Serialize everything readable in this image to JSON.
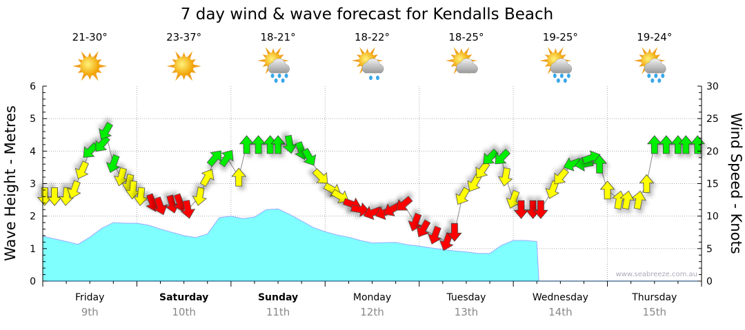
{
  "chart_data": {
    "type": "area+arrows",
    "title": "7 day wind & wave forecast for Kendalls Beach",
    "ylabel": "Wave Height - Metres",
    "y2label": "Wind Speed - Knots",
    "ylim": [
      0,
      6
    ],
    "y2lim": [
      0,
      30
    ],
    "yticks": [
      "0",
      "1",
      "2",
      "3",
      "4",
      "5",
      "6"
    ],
    "y2ticks": [
      "0",
      "5",
      "10",
      "15",
      "20",
      "25",
      "30"
    ],
    "grid": true,
    "watermark": "www.seabreeze.com.au",
    "colors": {
      "wave_fill": "#80ffff",
      "wave_line": "#99aaff",
      "wind_strong": "#00ee00",
      "wind_moderate": "#ffff00",
      "wind_light": "#ff0000"
    },
    "days": [
      {
        "day": "Friday",
        "date": "9th",
        "bold": false,
        "temp": "21-30°",
        "icon": "sunny"
      },
      {
        "day": "Saturday",
        "date": "10th",
        "bold": true,
        "temp": "23-37°",
        "icon": "sunny"
      },
      {
        "day": "Sunday",
        "date": "11th",
        "bold": true,
        "temp": "18-21°",
        "icon": "sun-cloud-rain"
      },
      {
        "day": "Monday",
        "date": "12th",
        "bold": false,
        "temp": "18-22°",
        "icon": "sun-cloud-drizzle"
      },
      {
        "day": "Tuesday",
        "date": "13th",
        "bold": false,
        "temp": "18-25°",
        "icon": "sun-cloud"
      },
      {
        "day": "Wednesday",
        "date": "14th",
        "bold": false,
        "temp": "19-25°",
        "icon": "sun-cloud-rain"
      },
      {
        "day": "Thursday",
        "date": "15th",
        "bold": false,
        "temp": "19-24°",
        "icon": "sun-cloud-rain"
      }
    ],
    "wave_step_hours": 3,
    "wave_height_m": [
      1.38,
      1.3,
      1.22,
      1.13,
      1.35,
      1.62,
      1.8,
      1.78,
      1.78,
      1.72,
      1.6,
      1.5,
      1.4,
      1.34,
      1.45,
      1.95,
      2.0,
      1.92,
      1.97,
      2.2,
      2.22,
      2.05,
      1.85,
      1.65,
      1.52,
      1.42,
      1.35,
      1.25,
      1.17,
      1.18,
      1.19,
      1.12,
      1.08,
      1.02,
      0.97,
      0.93,
      0.9,
      0.85,
      0.85,
      1.1,
      1.25,
      1.25,
      1.22
    ],
    "wind": [
      [
        0.5,
        13,
        180
      ],
      [
        3,
        13,
        180
      ],
      [
        6,
        13,
        185
      ],
      [
        8,
        14,
        200
      ],
      [
        10,
        17,
        205
      ],
      [
        12,
        20,
        225
      ],
      [
        15,
        21,
        220
      ],
      [
        16,
        23,
        210
      ],
      [
        18,
        18,
        200
      ],
      [
        20,
        16,
        195
      ],
      [
        22,
        15,
        190
      ],
      [
        23,
        14,
        185
      ],
      [
        25,
        13,
        185
      ],
      [
        28,
        12,
        160
      ],
      [
        30,
        11.5,
        160
      ],
      [
        33,
        11.8,
        165
      ],
      [
        35,
        12,
        160
      ],
      [
        37,
        11,
        170
      ],
      [
        40,
        13,
        190
      ],
      [
        42,
        16,
        30
      ],
      [
        44,
        19,
        40
      ],
      [
        47,
        19,
        35
      ],
      [
        50,
        16,
        0
      ],
      [
        52,
        21,
        0
      ],
      [
        55,
        21,
        0
      ],
      [
        58,
        21,
        0
      ],
      [
        60,
        21,
        0
      ],
      [
        63,
        21,
        170
      ],
      [
        66,
        20,
        160
      ],
      [
        68,
        19,
        150
      ],
      [
        71,
        16,
        135
      ],
      [
        74,
        14,
        120
      ],
      [
        76,
        13,
        120
      ],
      [
        79,
        11.8,
        110
      ],
      [
        81,
        11,
        100
      ],
      [
        84,
        10.5,
        250
      ],
      [
        87,
        10.5,
        250
      ],
      [
        89,
        11,
        240
      ],
      [
        92,
        11.8,
        230
      ],
      [
        95,
        9,
        200
      ],
      [
        97,
        8,
        210
      ],
      [
        100,
        7,
        200
      ],
      [
        103,
        6,
        200
      ],
      [
        105,
        7.5,
        180
      ],
      [
        107,
        13,
        210
      ],
      [
        110,
        15,
        210
      ],
      [
        112,
        17,
        215
      ],
      [
        114,
        19,
        225
      ],
      [
        117,
        19,
        225
      ],
      [
        118,
        16,
        190
      ],
      [
        120,
        12.5,
        200
      ],
      [
        122,
        11,
        180
      ],
      [
        125,
        11,
        180
      ],
      [
        127,
        11,
        180
      ],
      [
        130,
        14,
        200
      ],
      [
        132,
        16,
        220
      ],
      [
        135,
        18,
        250
      ],
      [
        138,
        18,
        260
      ],
      [
        140,
        19,
        70
      ],
      [
        142,
        18,
        0
      ],
      [
        144,
        14,
        0
      ],
      [
        147,
        12.5,
        10
      ],
      [
        149,
        12.5,
        10
      ],
      [
        152,
        12.5,
        10
      ],
      [
        154,
        15,
        0
      ],
      [
        156,
        21,
        0
      ],
      [
        159,
        21,
        0
      ],
      [
        162,
        21,
        0
      ],
      [
        164,
        21,
        0
      ],
      [
        167,
        21,
        0
      ]
    ]
  }
}
